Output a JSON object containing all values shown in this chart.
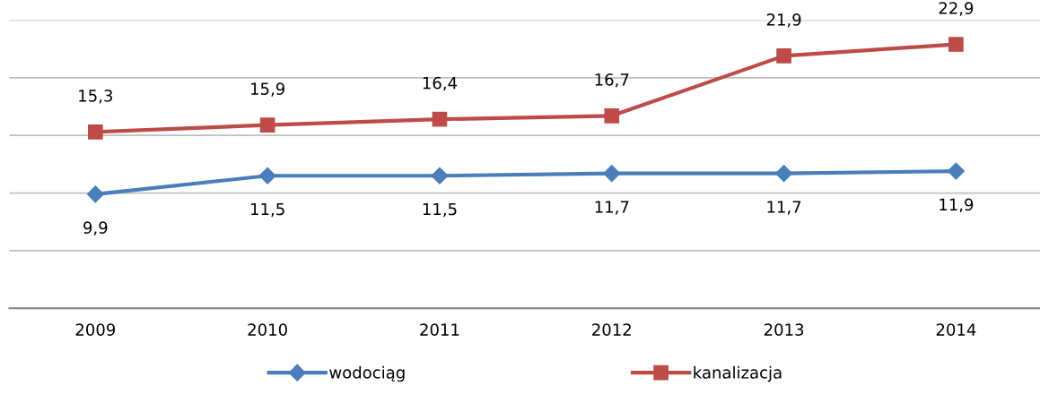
{
  "chart_data": {
    "type": "line",
    "categories": [
      "2009",
      "2010",
      "2011",
      "2012",
      "2013",
      "2014"
    ],
    "series": [
      {
        "name": "wodociąg",
        "color": "#4a7ebb",
        "marker": "diamond",
        "values": [
          9.9,
          11.5,
          11.5,
          11.7,
          11.7,
          11.9
        ],
        "value_labels": [
          "9,9",
          "11,5",
          "11,5",
          "11,7",
          "11,7",
          "11,9"
        ]
      },
      {
        "name": "kanalizacja",
        "color": "#be4b48",
        "marker": "square",
        "values": [
          15.3,
          15.9,
          16.4,
          16.7,
          21.9,
          22.9
        ],
        "value_labels": [
          "15,3",
          "15,9",
          "16,4",
          "16,7",
          "21,9",
          "22,9"
        ]
      }
    ],
    "ylim": [
      0,
      25
    ],
    "yticks": [
      {
        "value": 0,
        "label": null
      },
      {
        "value": 5,
        "label": null
      },
      {
        "value": 10,
        "label": null
      },
      {
        "value": 15,
        "label": null
      },
      {
        "value": 20,
        "label": null
      },
      {
        "value": 25,
        "label": null
      }
    ],
    "tick_labels": "x",
    "grid": "y",
    "legend": "bottom",
    "line_style": "solid"
  }
}
